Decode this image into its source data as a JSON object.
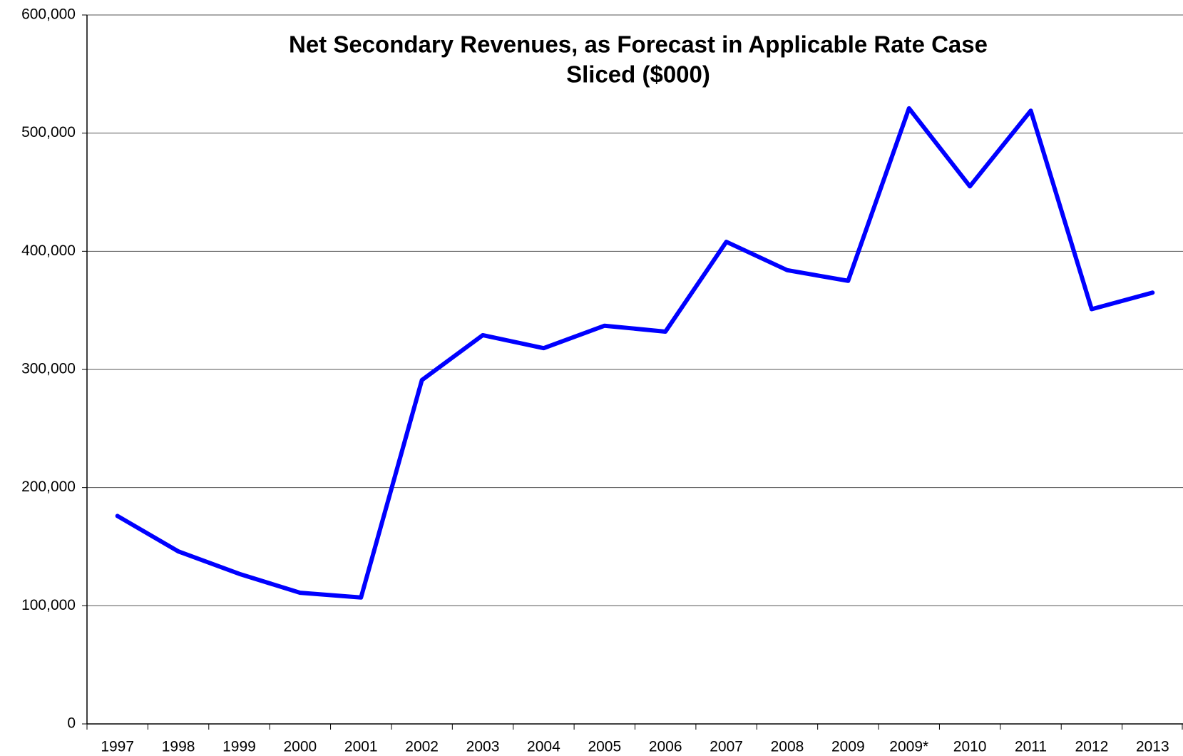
{
  "chart_data": {
    "type": "line",
    "title": [
      "Net Secondary Revenues, as Forecast in Applicable Rate Case",
      "Sliced ($000)"
    ],
    "categories": [
      "1997",
      "1998",
      "1999",
      "2000",
      "2001",
      "2002",
      "2003",
      "2004",
      "2005",
      "2006",
      "2007",
      "2008",
      "2009",
      "2009*",
      "2010",
      "2011",
      "2012",
      "2013"
    ],
    "series": [
      {
        "name": "Net Secondary Revenues",
        "color": "#0000ff",
        "values": [
          176000,
          146000,
          127000,
          111000,
          107000,
          291000,
          329000,
          318000,
          337000,
          332000,
          408000,
          384000,
          375000,
          521000,
          455000,
          519000,
          351000,
          365000
        ]
      }
    ],
    "ylim": [
      0,
      600000
    ],
    "yticks": [
      0,
      {
        "value": 100000,
        "label": "100,000"
      },
      {
        "value": 200000,
        "label": "200,000"
      },
      {
        "value": 300000,
        "label": "300,000"
      },
      {
        "value": 400000,
        "label": "400,000"
      },
      {
        "value": 500000,
        "label": "500,000"
      },
      {
        "value": 600000,
        "label": "600,000"
      }
    ],
    "grid": true
  }
}
